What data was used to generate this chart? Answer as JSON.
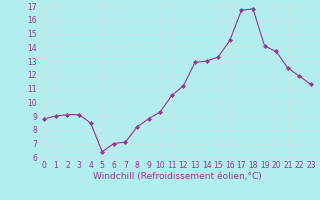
{
  "x": [
    0,
    1,
    2,
    3,
    4,
    5,
    6,
    7,
    8,
    9,
    10,
    11,
    12,
    13,
    14,
    15,
    16,
    17,
    18,
    19,
    20,
    21,
    22,
    23
  ],
  "y": [
    8.8,
    9.0,
    9.1,
    9.1,
    8.5,
    6.4,
    7.0,
    7.1,
    8.2,
    8.8,
    9.3,
    10.5,
    11.2,
    12.9,
    13.0,
    13.3,
    14.5,
    16.7,
    16.8,
    14.1,
    13.7,
    12.5,
    11.9,
    11.3
  ],
  "line_color": "#993399",
  "marker": "D",
  "marker_size": 2.0,
  "bg_color": "#b2eeee",
  "grid_color": "#c8e8e8",
  "xlabel": "Windchill (Refroidissement éolien,°C)",
  "xlabel_color": "#993399",
  "tick_color": "#993399",
  "ylim_min": 5.8,
  "ylim_max": 17.3,
  "xlim_min": -0.5,
  "xlim_max": 23.5,
  "yticks": [
    6,
    7,
    8,
    9,
    10,
    11,
    12,
    13,
    14,
    15,
    16,
    17
  ],
  "xticks": [
    0,
    1,
    2,
    3,
    4,
    5,
    6,
    7,
    8,
    9,
    10,
    11,
    12,
    13,
    14,
    15,
    16,
    17,
    18,
    19,
    20,
    21,
    22,
    23
  ],
  "tick_fontsize": 5.5,
  "xlabel_fontsize": 6.5,
  "linewidth": 0.8
}
